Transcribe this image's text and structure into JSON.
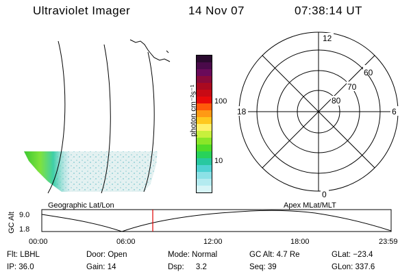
{
  "header": {
    "title": "Ultraviolet Imager",
    "date": "14 Nov 07",
    "time": "07:38:14 UT"
  },
  "colorbar": {
    "unit_label": "photon cm⁻²s⁻¹",
    "ticks": [
      "100",
      "10"
    ],
    "colors": [
      "#2a0a2e",
      "#4a0a4a",
      "#6a0a5a",
      "#8a0a3a",
      "#aa0a20",
      "#c80a14",
      "#e80a0a",
      "#ff5a0a",
      "#ff9a14",
      "#ffc81e",
      "#fff06a",
      "#c8f03c",
      "#8ae628",
      "#50dc28",
      "#28d25a",
      "#28c8a0",
      "#50d2d2",
      "#8ce1e6",
      "#b4ebf0",
      "#d7f5f7"
    ]
  },
  "polar_plot": {
    "mlt_labels": {
      "top": "12",
      "left": "18",
      "right": "6",
      "bottom": "0"
    },
    "lat_labels": [
      "80",
      "70",
      "60"
    ]
  },
  "map_labels": {
    "geographic": "Geographic Lat/Lon",
    "apex": "Apex MLat/MLT"
  },
  "altitude_plot": {
    "ylabel": "GC Alt",
    "y_ticks": [
      "9.0",
      "1.8"
    ],
    "x_ticks": [
      "00:00",
      "06:00",
      "12:00",
      "18:00",
      "23:59"
    ],
    "marker_color": "#e00000"
  },
  "status": {
    "row1": [
      {
        "label": "Flt:",
        "value": "LBHL"
      },
      {
        "label": "Door:",
        "value": "Open"
      },
      {
        "label": "Mode:",
        "value": "Normal"
      },
      {
        "label": "GC Alt:",
        "value": "4.7 Re"
      },
      {
        "label": "GLat:",
        "value": "−23.4"
      }
    ],
    "row2": [
      {
        "label": "IP:",
        "value": "36.0"
      },
      {
        "label": "Gain:",
        "value": "14"
      },
      {
        "label": "Dsp:",
        "value": "3.2"
      },
      {
        "label": "Seq:",
        "value": "39"
      },
      {
        "label": "GLon:",
        "value": "337.6"
      }
    ]
  }
}
